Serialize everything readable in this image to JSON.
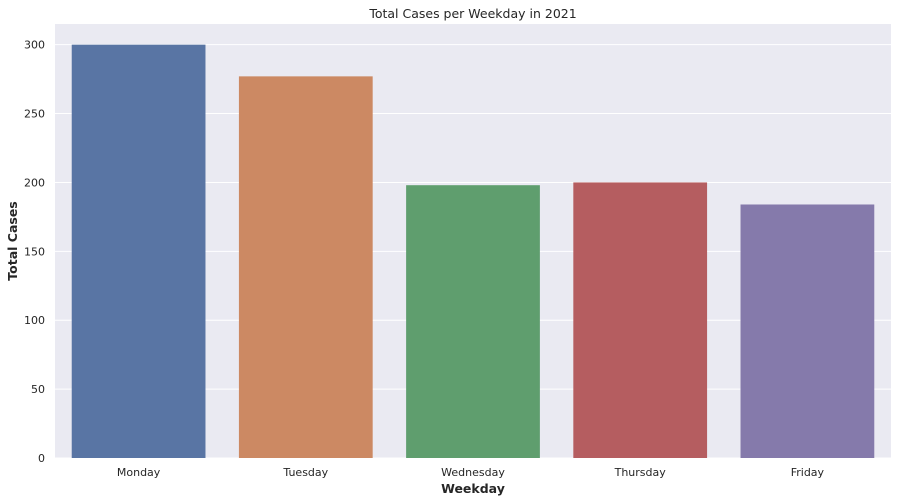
{
  "chart_data": {
    "type": "bar",
    "title": "Total Cases per Weekday in 2021",
    "xlabel": "Weekday",
    "ylabel": "Total Cases",
    "categories": [
      "Monday",
      "Tuesday",
      "Wednesday",
      "Thursday",
      "Friday"
    ],
    "values": [
      300,
      277,
      198,
      200,
      184
    ],
    "colors": [
      "#5975a4",
      "#cc8963",
      "#5f9e6e",
      "#b55d60",
      "#857aab"
    ],
    "ylim": [
      0,
      315
    ],
    "yticks": [
      0,
      50,
      100,
      150,
      200,
      250,
      300
    ],
    "grid": true,
    "background": "#eaeaf2"
  }
}
